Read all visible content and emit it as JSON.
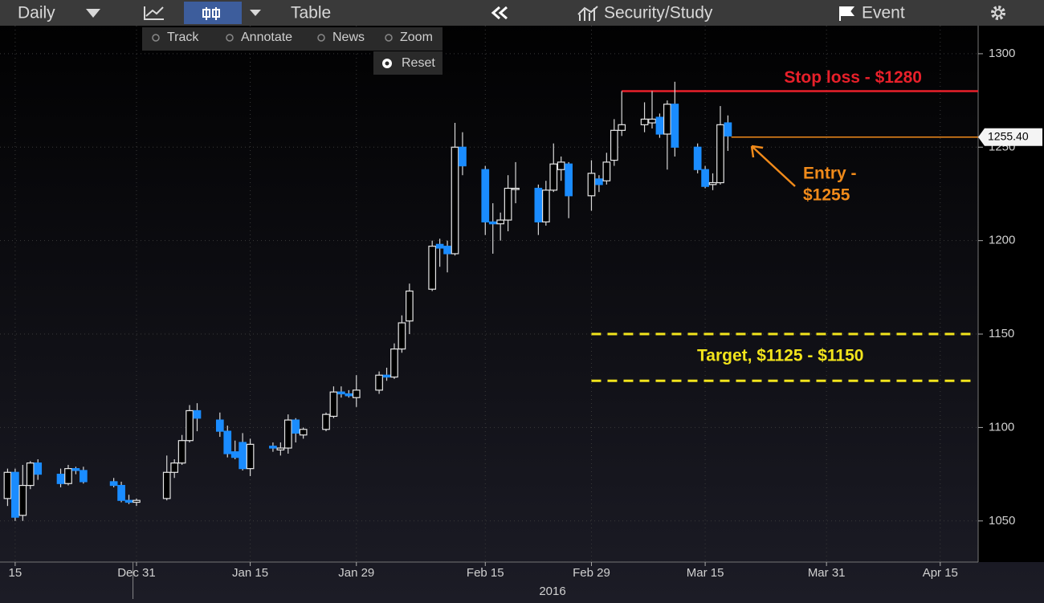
{
  "toolbar": {
    "period": "Daily",
    "table": "Table",
    "study": "Security/Study",
    "event": "Event",
    "tools": [
      "Track",
      "Annotate",
      "News",
      "Zoom"
    ],
    "reset": "Reset"
  },
  "chart_data": {
    "type": "candlestick",
    "x": [
      "Dec 14",
      "Dec 15",
      "Dec 16",
      "Dec 17",
      "Dec 18",
      "Dec 21",
      "Dec 22",
      "Dec 23",
      "Dec 24",
      "Dec 28",
      "Dec 29",
      "Dec 30",
      "Dec 31",
      "Jan 4",
      "Jan 5",
      "Jan 6",
      "Jan 7",
      "Jan 8",
      "Jan 11",
      "Jan 12",
      "Jan 13",
      "Jan 14",
      "Jan 15",
      "Jan 18",
      "Jan 19",
      "Jan 20",
      "Jan 21",
      "Jan 22",
      "Jan 25",
      "Jan 26",
      "Jan 27",
      "Jan 28",
      "Jan 29",
      "Feb 1",
      "Feb 2",
      "Feb 3",
      "Feb 4",
      "Feb 5",
      "Feb 8",
      "Feb 9",
      "Feb 10",
      "Feb 11",
      "Feb 12",
      "Feb 15",
      "Feb 16",
      "Feb 17",
      "Feb 18",
      "Feb 19",
      "Feb 22",
      "Feb 23",
      "Feb 24",
      "Feb 25",
      "Feb 26",
      "Feb 29",
      "Mar 1",
      "Mar 2",
      "Mar 3",
      "Mar 4",
      "Mar 7",
      "Mar 8",
      "Mar 9",
      "Mar 10",
      "Mar 11",
      "Mar 14",
      "Mar 15",
      "Mar 16",
      "Mar 17",
      "Mar 18"
    ],
    "open": [
      1062,
      1076,
      1053,
      1069,
      1081,
      1075,
      1070,
      1078,
      1077,
      1071,
      1069,
      1061,
      1060,
      1062,
      1076,
      1081,
      1093,
      1109,
      1104,
      1098,
      1087,
      1092,
      1078,
      1090,
      1088,
      1089,
      1104,
      1096,
      1099,
      1106,
      1119,
      1118,
      1116,
      1120,
      1128,
      1127,
      1142,
      1157,
      1174,
      1198,
      1197,
      1193,
      1250,
      1238,
      1210,
      1209,
      1211,
      1228,
      1228,
      1210,
      1227,
      1238,
      1241,
      1224,
      1233,
      1232,
      1243,
      1259,
      1262,
      1263,
      1266,
      1257,
      1273,
      1250,
      1238,
      1230,
      1231,
      1263
    ],
    "high": [
      1078,
      1078,
      1080,
      1082,
      1083,
      1078,
      1080,
      1079,
      1079,
      1073,
      1071,
      1064,
      1062,
      1085,
      1083,
      1096,
      1112,
      1113,
      1108,
      1101,
      1093,
      1097,
      1094,
      1092,
      1092,
      1107,
      1105,
      1100,
      1108,
      1122,
      1122,
      1120,
      1128,
      1130,
      1132,
      1145,
      1160,
      1177,
      1200,
      1201,
      1200,
      1263,
      1258,
      1240,
      1220,
      1215,
      1235,
      1242,
      1230,
      1232,
      1252,
      1245,
      1242,
      1243,
      1235,
      1247,
      1265,
      1280,
      1274,
      1280,
      1268,
      1275,
      1285,
      1252,
      1240,
      1236,
      1272,
      1267
    ],
    "low": [
      1058,
      1050,
      1050,
      1067,
      1072,
      1068,
      1069,
      1075,
      1070,
      1068,
      1060,
      1059,
      1058,
      1061,
      1073,
      1080,
      1092,
      1098,
      1095,
      1084,
      1083,
      1077,
      1074,
      1087,
      1085,
      1086,
      1092,
      1094,
      1098,
      1105,
      1116,
      1116,
      1111,
      1118,
      1125,
      1126,
      1140,
      1150,
      1173,
      1186,
      1183,
      1192,
      1235,
      1203,
      1193,
      1200,
      1205,
      1220,
      1203,
      1208,
      1226,
      1232,
      1212,
      1216,
      1226,
      1230,
      1240,
      1256,
      1258,
      1260,
      1255,
      1238,
      1245,
      1236,
      1228,
      1227,
      1230,
      1248
    ],
    "close": [
      1076,
      1052,
      1069,
      1081,
      1075,
      1070,
      1078,
      1077,
      1071,
      1069,
      1061,
      1060,
      1061,
      1076,
      1081,
      1093,
      1109,
      1105,
      1098,
      1086,
      1084,
      1078,
      1091,
      1089,
      1089,
      1104,
      1097,
      1099,
      1107,
      1119,
      1118,
      1117,
      1120,
      1128,
      1127,
      1142,
      1156,
      1173,
      1197,
      1196,
      1193,
      1250,
      1240,
      1210,
      1209,
      1211,
      1228,
      1228,
      1210,
      1227,
      1241,
      1242,
      1224,
      1236,
      1230,
      1242,
      1259,
      1262,
      1265,
      1265,
      1257,
      1273,
      1250,
      1238,
      1229,
      1231,
      1262,
      1256
    ],
    "up_color": "#e6e6e6",
    "down_color": "#1a8cff",
    "xlim": [
      "Dec 13",
      "Apr 20"
    ],
    "xticks": [
      {
        "value": "Dec 15",
        "label": "15"
      },
      "Dec 31",
      "Jan 15",
      "Jan 29",
      "Feb 15",
      "Feb 29",
      "Mar 15",
      "Mar 31",
      "Apr 15"
    ],
    "year_label": "2016",
    "ylim": [
      1028,
      1315
    ],
    "yticks": [
      1050,
      1100,
      1150,
      1200,
      1250,
      1300
    ],
    "grid": true,
    "last_price": {
      "value": 1255.4,
      "label": "1255.40",
      "color": "#f08a1a"
    },
    "stop_loss": {
      "text": "Stop loss - $1280",
      "value": 1280,
      "from": "Mar 4",
      "color": "#e8202a"
    },
    "entry": {
      "text": [
        "Entry -",
        "$1255"
      ],
      "color": "#f08a1a"
    },
    "target": {
      "text": "Target, $1125 - $1150",
      "values": [
        1150,
        1125
      ],
      "from": "Feb 29",
      "color": "#f2e41c"
    }
  }
}
